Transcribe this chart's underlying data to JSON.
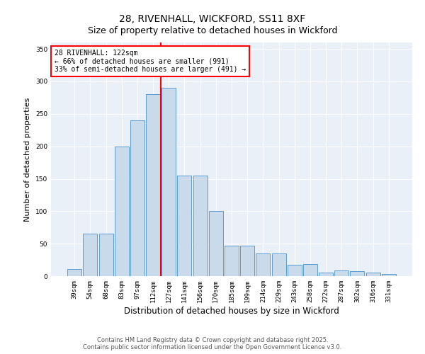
{
  "title_line1": "28, RIVENHALL, WICKFORD, SS11 8XF",
  "title_line2": "Size of property relative to detached houses in Wickford",
  "xlabel": "Distribution of detached houses by size in Wickford",
  "ylabel": "Number of detached properties",
  "categories": [
    "39sqm",
    "54sqm",
    "68sqm",
    "83sqm",
    "97sqm",
    "112sqm",
    "127sqm",
    "141sqm",
    "156sqm",
    "170sqm",
    "185sqm",
    "199sqm",
    "214sqm",
    "229sqm",
    "243sqm",
    "258sqm",
    "272sqm",
    "287sqm",
    "302sqm",
    "316sqm",
    "331sqm"
  ],
  "values": [
    11,
    65,
    65,
    200,
    240,
    280,
    290,
    155,
    155,
    100,
    47,
    47,
    35,
    35,
    18,
    19,
    5,
    9,
    8,
    5,
    3
  ],
  "bar_color": "#c9daea",
  "bar_edge_color": "#5b9bd5",
  "vline_color": "red",
  "vline_pos": 5.5,
  "annotation_text": "28 RIVENHALL: 122sqm\n← 66% of detached houses are smaller (991)\n33% of semi-detached houses are larger (491) →",
  "annotation_box_color": "white",
  "annotation_box_edge_color": "red",
  "ylim": [
    0,
    360
  ],
  "yticks": [
    0,
    50,
    100,
    150,
    200,
    250,
    300,
    350
  ],
  "background_color": "#eaf0f8",
  "footer_text": "Contains HM Land Registry data © Crown copyright and database right 2025.\nContains public sector information licensed under the Open Government Licence v3.0.",
  "title_fontsize": 10,
  "subtitle_fontsize": 9,
  "xlabel_fontsize": 8.5,
  "ylabel_fontsize": 8,
  "tick_fontsize": 6.5,
  "annotation_fontsize": 7,
  "footer_fontsize": 6
}
